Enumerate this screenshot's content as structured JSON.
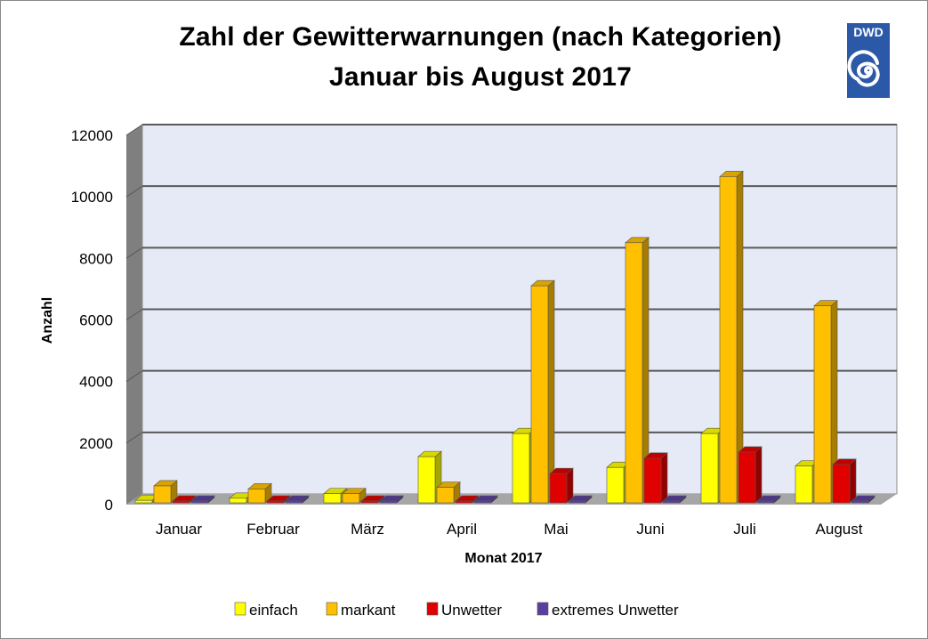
{
  "chart_data": {
    "type": "bar",
    "title": "Zahl der Gewitterwarnungen (nach Kategorien)",
    "subtitle": "Januar bis August 2017",
    "xlabel": "Monat 2017",
    "ylabel": "Anzahl",
    "ylim": [
      0,
      12000
    ],
    "yticks": [
      "0",
      "2000",
      "4000",
      "6000",
      "8000",
      "10000",
      "12000"
    ],
    "ytick_values": [
      0,
      2000,
      4000,
      6000,
      8000,
      10000,
      12000
    ],
    "grid": true,
    "legend_position": "bottom",
    "categories": [
      "Januar",
      "Februar",
      "März",
      "April",
      "Mai",
      "Juni",
      "Juli",
      "August"
    ],
    "series": [
      {
        "name": "einfach",
        "color": "#ffff00",
        "values": [
          80,
          150,
          300,
          1500,
          2250,
          1150,
          2250,
          1200
        ]
      },
      {
        "name": "markant",
        "color": "#ffc000",
        "values": [
          550,
          450,
          300,
          500,
          7050,
          8450,
          10600,
          6400
        ]
      },
      {
        "name": "Unwetter",
        "color": "#e00000",
        "values": [
          10,
          20,
          20,
          20,
          950,
          1450,
          1650,
          1250
        ]
      },
      {
        "name": "extremes Unwetter",
        "color": "#5b3fa0",
        "values": [
          0,
          0,
          0,
          0,
          10,
          20,
          30,
          10
        ]
      }
    ]
  },
  "logo": {
    "text": "DWD",
    "color": "#2c58a8"
  }
}
